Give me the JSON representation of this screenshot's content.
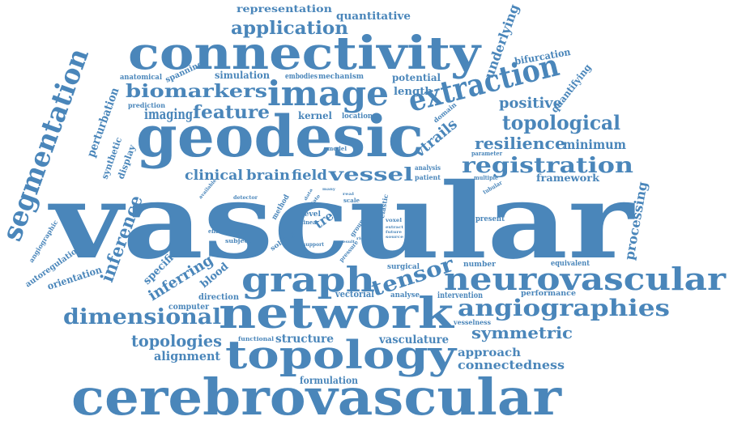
{
  "colors": {
    "word": "#4a86ba",
    "background": "#ffffff"
  },
  "words": [
    "vascular",
    "cerebrovascular",
    "geodesic",
    "connectivity",
    "network",
    "topology",
    "graph",
    "image",
    "neurovascular",
    "extraction",
    "segmentation",
    "angiographies",
    "registration",
    "topological",
    "biomarkers",
    "feature",
    "dimensional",
    "tensor",
    "application",
    "inference",
    "vessel",
    "resilience",
    "symmetric",
    "positive",
    "topologies",
    "imaging",
    "clinical",
    "brain",
    "field",
    "inferring",
    "vtrails",
    "underlying",
    "processing",
    "minimum",
    "quantitative",
    "representation",
    "connectedness",
    "approach",
    "alignment",
    "vasculature",
    "structure",
    "perturbation",
    "framework",
    "bifurcation",
    "quantifying",
    "potential",
    "length",
    "simulation",
    "embodies",
    "mechanism",
    "spanning",
    "anatomical",
    "kernel",
    "location",
    "domain",
    "prediction",
    "synthetic",
    "display",
    "orientation",
    "autoregulation",
    "angiographic",
    "specific",
    "blood",
    "direction",
    "computer",
    "formulation",
    "vectorial",
    "analyse",
    "intervention",
    "performance",
    "vesselness",
    "equivalent",
    "number",
    "present",
    "surgical",
    "functional",
    "detector",
    "method",
    "efficient",
    "subject",
    "solving",
    "parameter",
    "multiple",
    "tubular",
    "analysis",
    "patient",
    "model",
    "available",
    "tree",
    "level",
    "linear",
    "elastic",
    "voxel",
    "extract",
    "future",
    "source",
    "support",
    "result",
    "ridge",
    "pressure",
    "group",
    "scale",
    "state",
    "real",
    "data",
    "many"
  ]
}
